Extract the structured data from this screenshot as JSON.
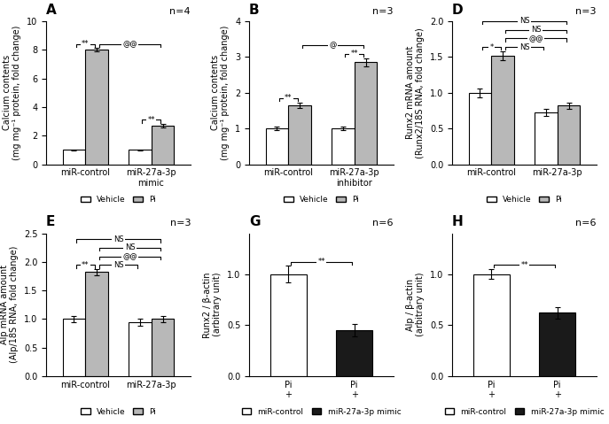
{
  "chart_data": [
    {
      "type": "bar",
      "title": "A",
      "subtitle": "n=4",
      "ylabel": "Calcium contents\n(mg mg⁻¹ protein, fold change)",
      "categories": [
        "miR-control",
        "miR-27a-3p\nmimic"
      ],
      "series": [
        {
          "name": "Vehicle",
          "color": "#ffffff",
          "values": [
            1.0,
            1.0
          ],
          "errors": [
            0.05,
            0.05
          ]
        },
        {
          "name": "Pi",
          "color": "#b8b8b8",
          "values": [
            8.0,
            2.7
          ],
          "errors": [
            0.12,
            0.1
          ]
        }
      ],
      "ylim": [
        0,
        10
      ],
      "yticks": [
        0,
        2,
        4,
        6,
        8,
        10
      ],
      "legend": "below",
      "grid": false,
      "annotations": [
        {
          "text": "**",
          "between": [
            {
              "series": "Vehicle",
              "category": "miR-control"
            },
            {
              "series": "Pi",
              "category": "miR-control"
            }
          ]
        },
        {
          "text": "**",
          "between": [
            {
              "series": "Vehicle",
              "category": "miR-27a-3p\nmimic"
            },
            {
              "series": "Pi",
              "category": "miR-27a-3p\nmimic"
            }
          ]
        },
        {
          "text": "@@",
          "between": [
            {
              "series": "Pi",
              "category": "miR-control"
            },
            {
              "series": "Pi",
              "category": "miR-27a-3p\nmimic"
            }
          ]
        }
      ]
    },
    {
      "type": "bar",
      "title": "B",
      "subtitle": "n=3",
      "ylabel": "Calcium contents\n(mg mg⁻¹ protein, fold change)",
      "categories": [
        "miR-control",
        "miR-27a-3p\ninhibitor"
      ],
      "series": [
        {
          "name": "Vehicle",
          "color": "#ffffff",
          "values": [
            1.0,
            1.0
          ],
          "errors": [
            0.05,
            0.05
          ]
        },
        {
          "name": "Pi",
          "color": "#b8b8b8",
          "values": [
            1.65,
            2.85
          ],
          "errors": [
            0.08,
            0.12
          ]
        }
      ],
      "ylim": [
        0,
        4
      ],
      "yticks": [
        0,
        1,
        2,
        3,
        4
      ],
      "legend": "below",
      "grid": false,
      "annotations": [
        {
          "text": "**",
          "between": [
            {
              "series": "Vehicle",
              "category": "miR-control"
            },
            {
              "series": "Pi",
              "category": "miR-control"
            }
          ]
        },
        {
          "text": "**",
          "between": [
            {
              "series": "Vehicle",
              "category": "miR-27a-3p\ninhibitor"
            },
            {
              "series": "Pi",
              "category": "miR-27a-3p\ninhibitor"
            }
          ]
        },
        {
          "text": "@",
          "between": [
            {
              "series": "Pi",
              "category": "miR-control"
            },
            {
              "series": "Pi",
              "category": "miR-27a-3p\ninhibitor"
            }
          ]
        }
      ]
    },
    {
      "type": "bar",
      "title": "D",
      "subtitle": "n=3",
      "ylabel": "Runx2 mRNA amount\n(Runx2/18S RNA, fold change)",
      "categories": [
        "miR-control",
        "miR-27a-3p"
      ],
      "series": [
        {
          "name": "Vehicle",
          "color": "#ffffff",
          "values": [
            1.0,
            0.72
          ],
          "errors": [
            0.06,
            0.05
          ]
        },
        {
          "name": "Pi",
          "color": "#b8b8b8",
          "values": [
            1.52,
            0.82
          ],
          "errors": [
            0.06,
            0.04
          ]
        }
      ],
      "ylim": [
        0,
        2.0
      ],
      "yticks": [
        0.0,
        0.5,
        1.0,
        1.5,
        2.0
      ],
      "legend": "below",
      "grid": false,
      "annotations": [
        {
          "text": "*",
          "between": [
            {
              "series": "Vehicle",
              "category": "miR-control"
            },
            {
              "series": "Pi",
              "category": "miR-control"
            }
          ]
        },
        {
          "text": "@@",
          "between": [
            {
              "series": "Pi",
              "category": "miR-control"
            },
            {
              "series": "Pi",
              "category": "miR-27a-3p"
            }
          ]
        },
        {
          "text": "NS",
          "between": [
            {
              "series": "Vehicle",
              "category": "miR-control"
            },
            {
              "series": "Pi",
              "category": "miR-27a-3p"
            }
          ]
        },
        {
          "text": "NS",
          "between": [
            {
              "series": "Pi",
              "category": "miR-control"
            },
            {
              "series": "Vehicle",
              "category": "miR-27a-3p"
            }
          ]
        },
        {
          "text": "NS",
          "between": [
            {
              "series": "Pi",
              "category": "miR-control"
            },
            {
              "series": "Pi",
              "category": "miR-27a-3p"
            }
          ]
        }
      ]
    },
    {
      "type": "bar",
      "title": "E",
      "subtitle": "n=3",
      "ylabel": "Alp mRNA amount\n(Alp/18S RNA, fold change)",
      "categories": [
        "miR-control",
        "miR-27a-3p"
      ],
      "series": [
        {
          "name": "Vehicle",
          "color": "#ffffff",
          "values": [
            1.0,
            0.95
          ],
          "errors": [
            0.05,
            0.06
          ]
        },
        {
          "name": "Pi",
          "color": "#b8b8b8",
          "values": [
            1.82,
            1.0
          ],
          "errors": [
            0.05,
            0.06
          ]
        }
      ],
      "ylim": [
        0,
        2.5
      ],
      "yticks": [
        0.0,
        0.5,
        1.0,
        1.5,
        2.0,
        2.5
      ],
      "legend": "below",
      "grid": false,
      "annotations": [
        {
          "text": "**",
          "between": [
            {
              "series": "Vehicle",
              "category": "miR-control"
            },
            {
              "series": "Pi",
              "category": "miR-control"
            }
          ]
        },
        {
          "text": "@@",
          "between": [
            {
              "series": "Pi",
              "category": "miR-control"
            },
            {
              "series": "Pi",
              "category": "miR-27a-3p"
            }
          ]
        },
        {
          "text": "NS",
          "between": [
            {
              "series": "Vehicle",
              "category": "miR-control"
            },
            {
              "series": "Pi",
              "category": "miR-27a-3p"
            }
          ]
        },
        {
          "text": "NS",
          "between": [
            {
              "series": "Pi",
              "category": "miR-control"
            },
            {
              "series": "Vehicle",
              "category": "miR-27a-3p"
            }
          ]
        },
        {
          "text": "NS",
          "between": [
            {
              "series": "Pi",
              "category": "miR-control"
            },
            {
              "series": "Pi",
              "category": "miR-27a-3p"
            }
          ]
        }
      ]
    },
    {
      "type": "bar",
      "title": "G",
      "subtitle": "n=6",
      "ylabel": "Runx2 / β-actin\n(arbitrary unit)",
      "categories": [
        "Pi\n+",
        "Pi\n+"
      ],
      "series": [
        {
          "name": "miR-control",
          "color": "#ffffff",
          "values": [
            1.0,
            null
          ],
          "errors": [
            0.08,
            null
          ]
        },
        {
          "name": "miR-27a-3p mimic",
          "color": "#1a1a1a",
          "values": [
            null,
            0.45
          ],
          "errors": [
            null,
            0.06
          ]
        }
      ],
      "ylim": [
        0,
        1.4
      ],
      "yticks": [
        0.0,
        0.5,
        1.0
      ],
      "legend": "below",
      "grid": false,
      "annotations": [
        {
          "text": "**",
          "between": [
            {
              "series": "miR-control"
            },
            {
              "series": "miR-27a-3p mimic"
            }
          ]
        }
      ]
    },
    {
      "type": "bar",
      "title": "H",
      "subtitle": "n=6",
      "ylabel": "Alp / β-actin\n(arbitrary unit)",
      "categories": [
        "Pi\n+",
        "Pi\n+"
      ],
      "series": [
        {
          "name": "miR-control",
          "color": "#ffffff",
          "values": [
            1.0,
            null
          ],
          "errors": [
            0.05,
            null
          ]
        },
        {
          "name": "miR-27a-3p mimic",
          "color": "#1a1a1a",
          "values": [
            null,
            0.62
          ],
          "errors": [
            null,
            0.06
          ]
        }
      ],
      "ylim": [
        0,
        1.4
      ],
      "yticks": [
        0.0,
        0.5,
        1.0
      ],
      "legend": "below",
      "grid": false,
      "annotations": [
        {
          "text": "**",
          "between": [
            {
              "series": "miR-control"
            },
            {
              "series": "miR-27a-3p mimic"
            }
          ]
        }
      ]
    }
  ]
}
